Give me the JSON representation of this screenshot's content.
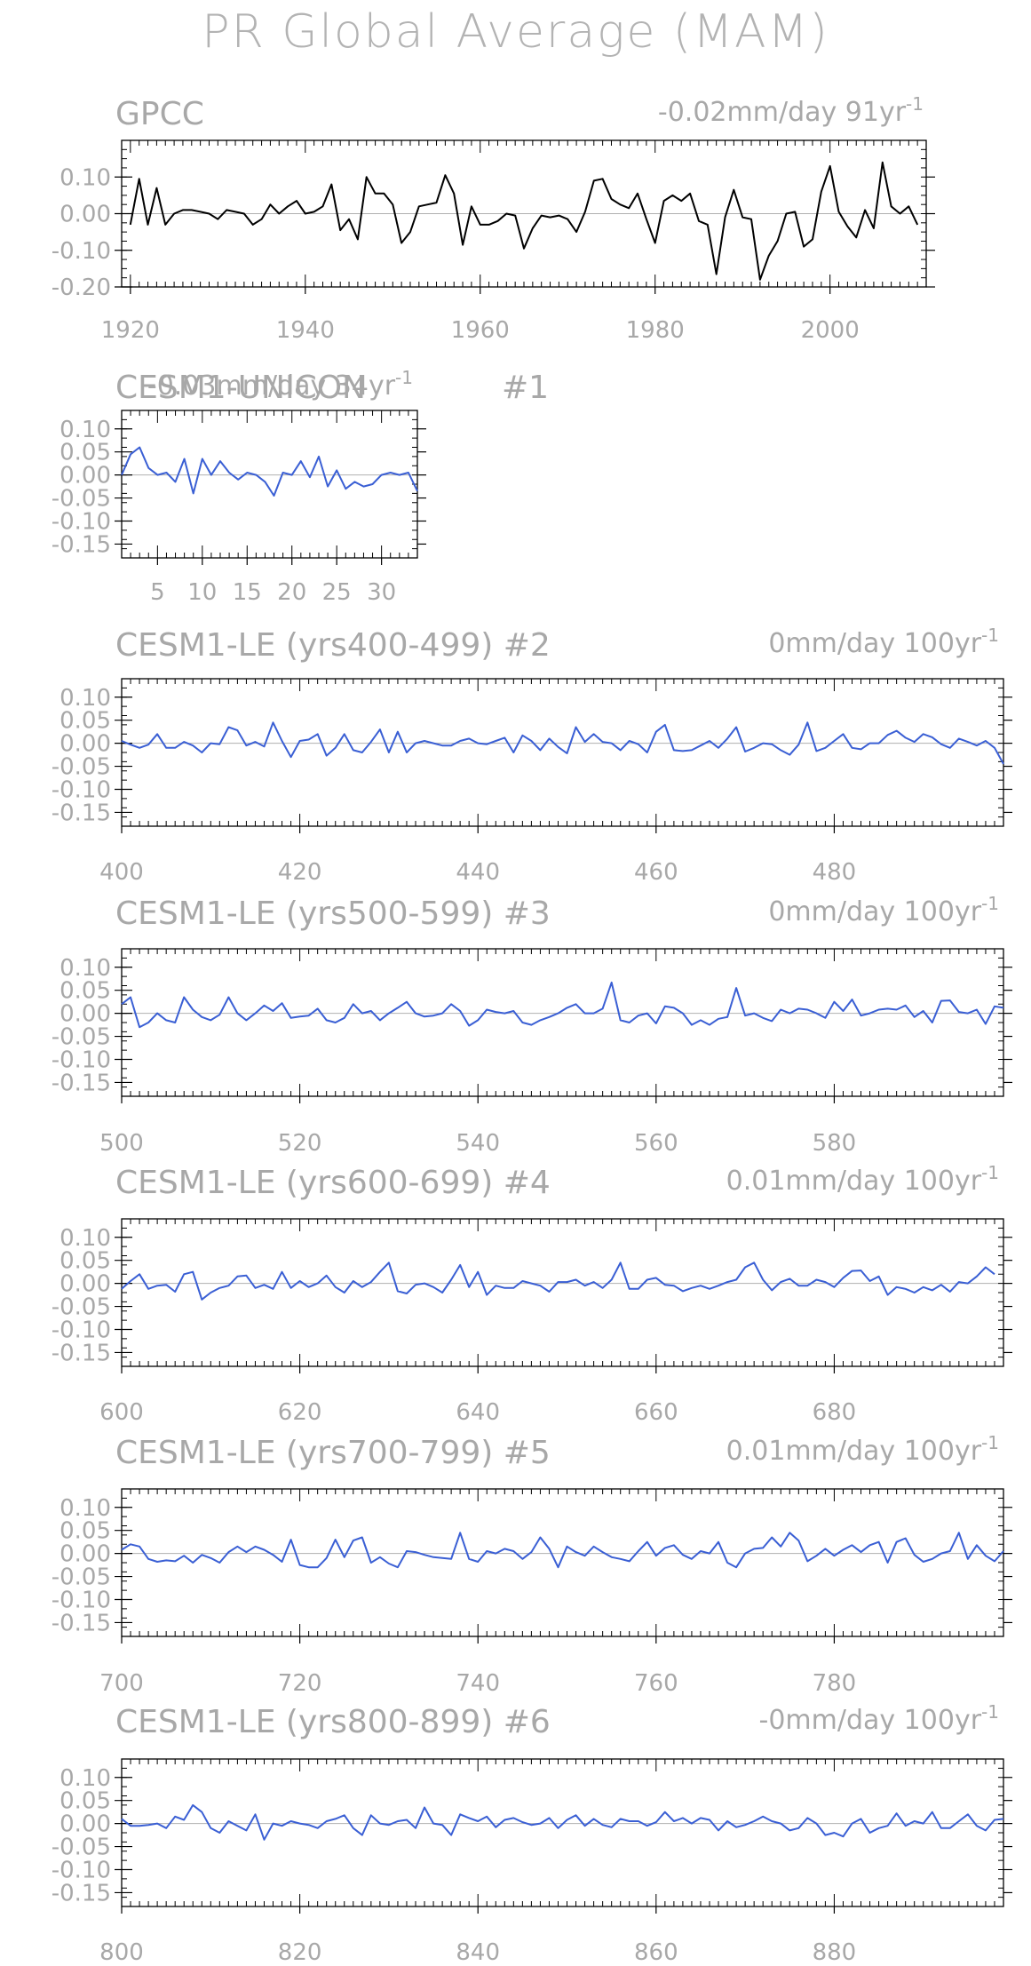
{
  "page_title": "PR Global Average (MAM)",
  "colors": {
    "observed": "#000000",
    "model": "#3a5fd4",
    "text": "#a8a8a8",
    "zero_line": "#b0b0b0",
    "frame": "#000000"
  },
  "chart_data": [
    {
      "type": "line",
      "title": "GPCC",
      "trend": "-0.02mm/day 91yr",
      "trend_exp": "-1",
      "color": "#000000",
      "x_start": 1920,
      "xlim": [
        1919,
        2011
      ],
      "ylim": [
        -0.2,
        0.2
      ],
      "xticks": [
        1920,
        1940,
        1960,
        1980,
        2000
      ],
      "yticks": [
        0.1,
        0.0,
        -0.1,
        -0.2
      ],
      "ytick_labels": [
        "0.10",
        "0.00",
        "-0.10",
        "-0.20"
      ],
      "values": [
        -0.03,
        0.095,
        -0.03,
        0.07,
        -0.03,
        0.0,
        0.01,
        0.01,
        0.005,
        0.0,
        -0.015,
        0.01,
        0.005,
        0.0,
        -0.03,
        -0.015,
        0.025,
        0.0,
        0.02,
        0.035,
        0.0,
        0.005,
        0.02,
        0.08,
        -0.045,
        -0.015,
        -0.07,
        0.1,
        0.055,
        0.055,
        0.025,
        -0.08,
        -0.05,
        0.02,
        0.025,
        0.03,
        0.105,
        0.055,
        -0.085,
        0.02,
        -0.03,
        -0.03,
        -0.02,
        0.0,
        -0.005,
        -0.095,
        -0.04,
        -0.005,
        -0.01,
        -0.005,
        -0.015,
        -0.05,
        0.005,
        0.09,
        0.095,
        0.04,
        0.025,
        0.015,
        0.055,
        -0.015,
        -0.08,
        0.035,
        0.05,
        0.035,
        0.055,
        -0.02,
        -0.03,
        -0.165,
        -0.01,
        0.065,
        -0.01,
        -0.015,
        -0.18,
        -0.115,
        -0.075,
        0.0,
        0.005,
        -0.09,
        -0.07,
        0.06,
        0.13,
        0.005,
        -0.035,
        -0.065,
        0.01,
        -0.04,
        0.14,
        0.02,
        0.0,
        0.02,
        -0.03
      ]
    },
    {
      "type": "line",
      "title": "CESM1-UNICON",
      "title_suffix": "#1",
      "trend": "-0.03mm/day 34yr",
      "trend_exp": "-1",
      "color": "#3a5fd4",
      "x_start": 1,
      "xlim": [
        1,
        34
      ],
      "ylim": [
        -0.18,
        0.14
      ],
      "xticks": [
        5,
        10,
        15,
        20,
        25,
        30
      ],
      "yticks": [
        0.1,
        0.05,
        0.0,
        -0.05,
        -0.1,
        -0.15
      ],
      "ytick_labels": [
        "0.10",
        "0.05",
        "0.00",
        "-0.05",
        "-0.10",
        "-0.15"
      ],
      "values": [
        0.0,
        0.045,
        0.06,
        0.015,
        0.0,
        0.005,
        -0.015,
        0.035,
        -0.04,
        0.035,
        0.0,
        0.03,
        0.005,
        -0.01,
        0.005,
        0.0,
        -0.015,
        -0.045,
        0.005,
        0.0,
        0.03,
        -0.005,
        0.04,
        -0.025,
        0.01,
        -0.03,
        -0.015,
        -0.025,
        -0.02,
        0.0,
        0.005,
        0.0,
        0.005,
        -0.035
      ]
    },
    {
      "type": "line",
      "title": "CESM1-LE (yrs400-499) #2",
      "trend": "0mm/day 100yr",
      "trend_exp": "-1",
      "color": "#3a5fd4",
      "x_start": 400,
      "xlim": [
        400,
        499
      ],
      "ylim": [
        -0.18,
        0.14
      ],
      "xticks": [
        400,
        420,
        440,
        460,
        480
      ],
      "yticks": [
        0.1,
        0.05,
        0.0,
        -0.05,
        -0.1,
        -0.15
      ],
      "ytick_labels": [
        "0.10",
        "0.05",
        "0.00",
        "-0.05",
        "-0.10",
        "-0.15"
      ],
      "values": [
        0.005,
        -0.003,
        -0.01,
        -0.003,
        0.02,
        -0.01,
        -0.01,
        0.003,
        -0.005,
        -0.02,
        0.0,
        -0.002,
        0.035,
        0.028,
        -0.005,
        0.003,
        -0.007,
        0.045,
        0.005,
        -0.03,
        0.005,
        0.008,
        0.02,
        -0.027,
        -0.01,
        0.02,
        -0.015,
        -0.02,
        0.003,
        0.03,
        -0.02,
        0.025,
        -0.02,
        0.0,
        0.005,
        0.0,
        -0.005,
        -0.005,
        0.005,
        0.01,
        0.0,
        -0.002,
        0.005,
        0.012,
        -0.02,
        0.017,
        0.005,
        -0.015,
        0.01,
        -0.008,
        -0.022,
        0.035,
        0.003,
        0.02,
        0.003,
        0.0,
        -0.015,
        0.005,
        -0.002,
        -0.02,
        0.025,
        0.04,
        -0.015,
        -0.017,
        -0.015,
        -0.005,
        0.005,
        -0.01,
        0.01,
        0.035,
        -0.018,
        -0.01,
        0.0,
        -0.002,
        -0.015,
        -0.025,
        -0.003,
        0.045,
        -0.017,
        -0.01,
        0.005,
        0.02,
        -0.01,
        -0.013,
        0.0,
        0.0,
        0.018,
        0.027,
        0.012,
        0.003,
        0.02,
        0.013,
        -0.002,
        -0.01,
        0.01,
        0.003,
        -0.005,
        0.005,
        -0.01,
        -0.045
      ]
    },
    {
      "type": "line",
      "title": "CESM1-LE (yrs500-599) #3",
      "trend": "0mm/day 100yr",
      "trend_exp": "-1",
      "color": "#3a5fd4",
      "x_start": 500,
      "xlim": [
        500,
        599
      ],
      "ylim": [
        -0.18,
        0.14
      ],
      "xticks": [
        500,
        520,
        540,
        560,
        580
      ],
      "yticks": [
        0.1,
        0.05,
        0.0,
        -0.05,
        -0.1,
        -0.15
      ],
      "ytick_labels": [
        "0.10",
        "0.05",
        "0.00",
        "-0.05",
        "-0.10",
        "-0.15"
      ],
      "values": [
        0.02,
        0.035,
        -0.03,
        -0.02,
        0.0,
        -0.015,
        -0.02,
        0.035,
        0.008,
        -0.008,
        -0.015,
        -0.003,
        0.035,
        0.0,
        -0.015,
        0.0,
        0.017,
        0.005,
        0.022,
        -0.01,
        -0.007,
        -0.005,
        0.01,
        -0.015,
        -0.02,
        -0.01,
        0.02,
        0.0,
        0.005,
        -0.015,
        0.0,
        0.012,
        0.025,
        0.0,
        -0.007,
        -0.005,
        0.0,
        0.02,
        0.005,
        -0.027,
        -0.015,
        0.008,
        0.003,
        0.0,
        0.005,
        -0.02,
        -0.025,
        -0.015,
        -0.008,
        0.0,
        0.012,
        0.02,
        0.0,
        0.0,
        0.01,
        0.067,
        -0.015,
        -0.02,
        -0.005,
        0.0,
        -0.022,
        0.015,
        0.012,
        0.0,
        -0.025,
        -0.015,
        -0.025,
        -0.012,
        -0.008,
        0.055,
        -0.005,
        0.0,
        -0.01,
        -0.017,
        0.008,
        0.0,
        0.01,
        0.008,
        0.0,
        -0.01,
        0.025,
        0.005,
        0.03,
        -0.005,
        0.0,
        0.008,
        0.01,
        0.008,
        0.017,
        -0.008,
        0.005,
        -0.02,
        0.027,
        0.028,
        0.003,
        0.0,
        0.008,
        -0.023,
        0.015,
        0.012
      ]
    },
    {
      "type": "line",
      "title": "CESM1-LE (yrs600-699) #4",
      "trend": "0.01mm/day 100yr",
      "trend_exp": "-1",
      "color": "#3a5fd4",
      "x_start": 600,
      "xlim": [
        600,
        699
      ],
      "ylim": [
        -0.18,
        0.14
      ],
      "xticks": [
        600,
        620,
        640,
        660,
        680
      ],
      "yticks": [
        0.1,
        0.05,
        0.0,
        -0.05,
        -0.1,
        -0.15
      ],
      "ytick_labels": [
        "0.10",
        "0.05",
        "0.00",
        "-0.05",
        "-0.10",
        "-0.15"
      ],
      "values": [
        -0.012,
        0.005,
        0.02,
        -0.012,
        -0.005,
        -0.003,
        -0.018,
        0.02,
        0.025,
        -0.035,
        -0.02,
        -0.01,
        -0.005,
        0.015,
        0.017,
        -0.01,
        -0.003,
        -0.012,
        0.025,
        -0.01,
        0.005,
        -0.008,
        0.0,
        0.017,
        -0.008,
        -0.02,
        0.005,
        -0.008,
        0.003,
        0.025,
        0.045,
        -0.017,
        -0.022,
        -0.003,
        0.0,
        -0.008,
        -0.02,
        0.008,
        0.04,
        -0.008,
        0.025,
        -0.025,
        -0.005,
        -0.01,
        -0.01,
        0.005,
        0.0,
        -0.005,
        -0.018,
        0.003,
        0.003,
        0.008,
        -0.005,
        0.003,
        -0.01,
        0.008,
        0.045,
        -0.012,
        -0.012,
        0.008,
        0.012,
        -0.003,
        -0.005,
        -0.017,
        -0.01,
        -0.005,
        -0.012,
        -0.005,
        0.003,
        0.008,
        0.035,
        0.045,
        0.008,
        -0.015,
        0.003,
        0.01,
        -0.005,
        -0.005,
        0.008,
        0.003,
        -0.008,
        0.012,
        0.027,
        0.028,
        0.005,
        0.015,
        -0.025,
        -0.008,
        -0.012,
        -0.02,
        -0.008,
        -0.015,
        -0.003,
        -0.018,
        0.003,
        0.0,
        0.015,
        0.035,
        0.02
      ]
    },
    {
      "type": "line",
      "title": "CESM1-LE (yrs700-799) #5",
      "trend": "0.01mm/day 100yr",
      "trend_exp": "-1",
      "color": "#3a5fd4",
      "x_start": 700,
      "xlim": [
        700,
        799
      ],
      "ylim": [
        -0.18,
        0.14
      ],
      "xticks": [
        700,
        720,
        740,
        760,
        780
      ],
      "yticks": [
        0.1,
        0.05,
        0.0,
        -0.05,
        -0.1,
        -0.15
      ],
      "ytick_labels": [
        "0.10",
        "0.05",
        "0.00",
        "-0.05",
        "-0.10",
        "-0.15"
      ],
      "values": [
        0.008,
        0.02,
        0.015,
        -0.012,
        -0.018,
        -0.015,
        -0.017,
        -0.005,
        -0.02,
        -0.003,
        -0.01,
        -0.02,
        0.003,
        0.015,
        0.003,
        0.015,
        0.008,
        -0.003,
        -0.018,
        0.03,
        -0.025,
        -0.03,
        -0.03,
        -0.01,
        0.03,
        -0.008,
        0.028,
        0.035,
        -0.02,
        -0.008,
        -0.022,
        -0.03,
        0.005,
        0.003,
        -0.003,
        -0.008,
        -0.01,
        -0.012,
        0.045,
        -0.012,
        -0.018,
        0.005,
        0.0,
        0.01,
        0.005,
        -0.012,
        0.003,
        0.035,
        0.01,
        -0.03,
        0.015,
        0.003,
        -0.005,
        0.015,
        0.003,
        -0.008,
        -0.012,
        -0.017,
        0.005,
        0.025,
        -0.005,
        0.012,
        0.018,
        -0.003,
        -0.012,
        0.005,
        0.0,
        0.025,
        -0.02,
        -0.03,
        0.0,
        0.01,
        0.012,
        0.035,
        0.015,
        0.045,
        0.028,
        -0.017,
        -0.005,
        0.01,
        -0.005,
        0.008,
        0.018,
        0.003,
        0.018,
        0.025,
        -0.02,
        0.025,
        0.033,
        -0.003,
        -0.018,
        -0.012,
        0.0,
        0.005,
        0.045,
        -0.012,
        0.018,
        -0.005,
        -0.017,
        0.005
      ]
    },
    {
      "type": "line",
      "title": "CESM1-LE (yrs800-899) #6",
      "trend": "-0mm/day 100yr",
      "trend_exp": "-1",
      "color": "#3a5fd4",
      "x_start": 800,
      "xlim": [
        800,
        899
      ],
      "ylim": [
        -0.18,
        0.14
      ],
      "xticks": [
        800,
        820,
        840,
        860,
        880
      ],
      "yticks": [
        0.1,
        0.05,
        0.0,
        -0.05,
        -0.1,
        -0.15
      ],
      "ytick_labels": [
        "0.10",
        "0.05",
        "0.00",
        "-0.05",
        "-0.10",
        "-0.15"
      ],
      "values": [
        0.01,
        -0.005,
        -0.005,
        -0.003,
        0.0,
        -0.01,
        0.015,
        0.008,
        0.04,
        0.025,
        -0.01,
        -0.02,
        0.005,
        -0.005,
        -0.015,
        0.02,
        -0.035,
        0.0,
        -0.005,
        0.005,
        0.0,
        -0.003,
        -0.01,
        0.005,
        0.01,
        0.018,
        -0.01,
        -0.025,
        0.018,
        0.0,
        -0.003,
        0.005,
        0.008,
        -0.01,
        0.035,
        0.0,
        -0.003,
        -0.025,
        0.02,
        0.012,
        0.005,
        0.015,
        -0.008,
        0.008,
        0.012,
        0.003,
        -0.003,
        0.0,
        0.012,
        -0.01,
        0.008,
        0.018,
        -0.005,
        0.01,
        -0.003,
        -0.008,
        0.01,
        0.005,
        0.005,
        -0.005,
        0.003,
        0.025,
        0.005,
        0.012,
        0.0,
        0.012,
        0.008,
        -0.015,
        0.005,
        -0.008,
        -0.003,
        0.005,
        0.015,
        0.005,
        0.0,
        -0.015,
        -0.01,
        0.012,
        0.0,
        -0.025,
        -0.02,
        -0.028,
        0.0,
        0.01,
        -0.02,
        -0.01,
        -0.005,
        0.022,
        -0.005,
        0.005,
        0.0,
        0.025,
        -0.01,
        -0.01,
        0.005,
        0.02,
        -0.005,
        -0.015,
        0.008,
        0.01
      ]
    }
  ]
}
